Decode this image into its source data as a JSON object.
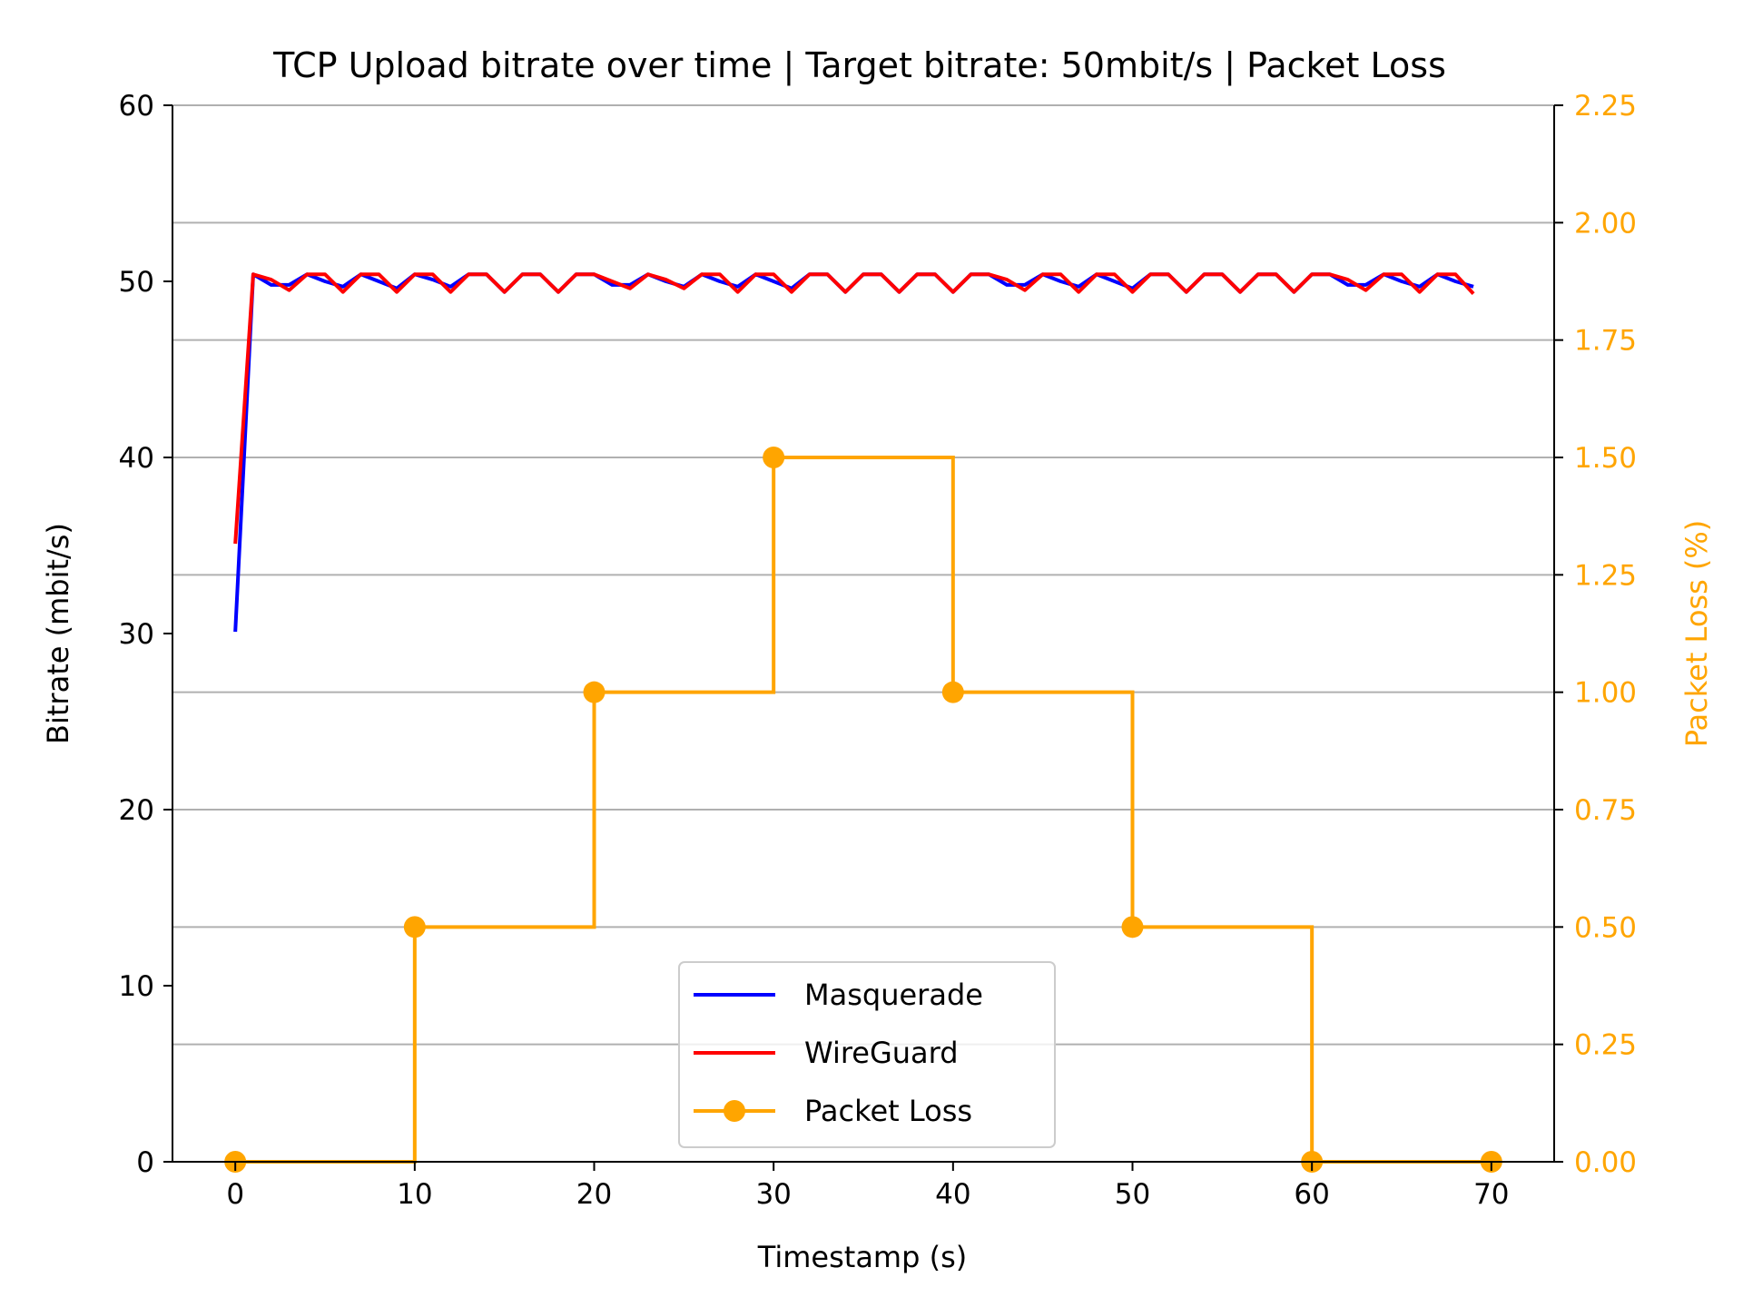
{
  "chart_data": {
    "type": "line",
    "title": "TCP Upload bitrate over time | Target bitrate: 50mbit/s | Packet Loss",
    "xlabel": "Timestamp (s)",
    "ylabel": "Bitrate (mbit/s)",
    "y2label": "Packet Loss (%)",
    "xlim": [
      -3.5,
      73.5
    ],
    "ylim": [
      0,
      60
    ],
    "y2lim": [
      0,
      2.25
    ],
    "xticks": [
      0,
      10,
      20,
      30,
      40,
      50,
      60,
      70
    ],
    "yticks": [
      0,
      10,
      20,
      30,
      40,
      50,
      60
    ],
    "y2ticks": [
      "0.00",
      "0.25",
      "0.50",
      "0.75",
      "1.00",
      "1.25",
      "1.50",
      "1.75",
      "2.00",
      "2.25"
    ],
    "grid": "horizontal lines on secondary axis",
    "legend_placement": "lower center",
    "series": [
      {
        "name": "Masquerade",
        "axis": "left",
        "color": "#0000ff",
        "x": [
          0,
          1,
          2,
          3,
          4,
          5,
          6,
          7,
          8,
          9,
          10,
          11,
          12,
          13,
          14,
          15,
          16,
          17,
          18,
          19,
          20,
          21,
          22,
          23,
          24,
          25,
          26,
          27,
          28,
          29,
          30,
          31,
          32,
          33,
          34,
          35,
          36,
          37,
          38,
          39,
          40,
          41,
          42,
          43,
          44,
          45,
          46,
          47,
          48,
          49,
          50,
          51,
          52,
          53,
          54,
          55,
          56,
          57,
          58,
          59,
          60,
          61,
          62,
          63,
          64,
          65,
          66,
          67,
          68,
          69
        ],
        "y": [
          30.1,
          50.4,
          49.8,
          49.8,
          50.4,
          50.0,
          49.7,
          50.4,
          50.0,
          49.6,
          50.4,
          50.1,
          49.7,
          50.4,
          50.4,
          49.4,
          50.4,
          50.4,
          49.4,
          50.4,
          50.4,
          49.8,
          49.8,
          50.4,
          50.0,
          49.7,
          50.4,
          50.0,
          49.7,
          50.4,
          50.0,
          49.6,
          50.4,
          50.4,
          49.4,
          50.4,
          50.4,
          49.4,
          50.4,
          50.4,
          49.4,
          50.4,
          50.4,
          49.8,
          49.8,
          50.4,
          50.0,
          49.7,
          50.4,
          50.0,
          49.6,
          50.4,
          50.4,
          49.4,
          50.4,
          50.4,
          49.4,
          50.4,
          50.4,
          49.4,
          50.4,
          50.4,
          49.8,
          49.8,
          50.4,
          50.0,
          49.7,
          50.4,
          50.0,
          49.7
        ]
      },
      {
        "name": "WireGuard",
        "axis": "left",
        "color": "#ff0000",
        "x": [
          0,
          1,
          2,
          3,
          4,
          5,
          6,
          7,
          8,
          9,
          10,
          11,
          12,
          13,
          14,
          15,
          16,
          17,
          18,
          19,
          20,
          21,
          22,
          23,
          24,
          25,
          26,
          27,
          28,
          29,
          30,
          31,
          32,
          33,
          34,
          35,
          36,
          37,
          38,
          39,
          40,
          41,
          42,
          43,
          44,
          45,
          46,
          47,
          48,
          49,
          50,
          51,
          52,
          53,
          54,
          55,
          56,
          57,
          58,
          59,
          60,
          61,
          62,
          63,
          64,
          65,
          66,
          67,
          68,
          69
        ],
        "y": [
          35.1,
          50.4,
          50.1,
          49.5,
          50.4,
          50.4,
          49.4,
          50.4,
          50.4,
          49.4,
          50.4,
          50.4,
          49.4,
          50.4,
          50.4,
          49.4,
          50.4,
          50.4,
          49.4,
          50.4,
          50.4,
          50.0,
          49.6,
          50.4,
          50.1,
          49.6,
          50.4,
          50.4,
          49.4,
          50.4,
          50.4,
          49.4,
          50.4,
          50.4,
          49.4,
          50.4,
          50.4,
          49.4,
          50.4,
          50.4,
          49.4,
          50.4,
          50.4,
          50.1,
          49.5,
          50.4,
          50.4,
          49.4,
          50.4,
          50.4,
          49.4,
          50.4,
          50.4,
          49.4,
          50.4,
          50.4,
          49.4,
          50.4,
          50.4,
          49.4,
          50.4,
          50.4,
          50.1,
          49.5,
          50.4,
          50.4,
          49.4,
          50.4,
          50.4,
          49.3
        ]
      },
      {
        "name": "Packet Loss",
        "axis": "right",
        "color": "#ffa500",
        "step": "post",
        "marker": "circle",
        "x": [
          0,
          10,
          20,
          30,
          40,
          50,
          60,
          70
        ],
        "y": [
          0.0,
          0.5,
          1.0,
          1.5,
          1.0,
          0.5,
          0.0,
          0.0
        ]
      }
    ]
  }
}
